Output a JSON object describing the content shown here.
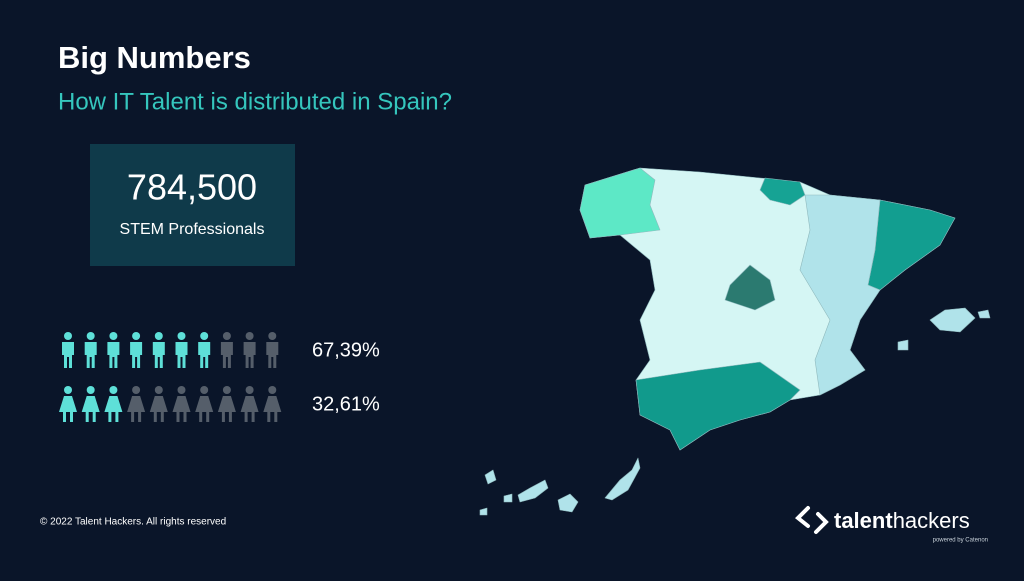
{
  "header": {
    "title": "Big Numbers",
    "subtitle": "How IT Talent is distributed in Spain?"
  },
  "stat": {
    "value": "784,500",
    "label": "STEM Professionals"
  },
  "pictograms": [
    {
      "icon": "man",
      "total": 10,
      "filled": 7,
      "label": "67,39%"
    },
    {
      "icon": "woman",
      "total": 10,
      "filled": 3,
      "label": "32,61%"
    }
  ],
  "footer": {
    "copyright": "© 2022  Talent Hackers. All rights reserved",
    "logo_prefix": "talent",
    "logo_suffix": "hackers",
    "powered": "powered by Catenon"
  }
}
